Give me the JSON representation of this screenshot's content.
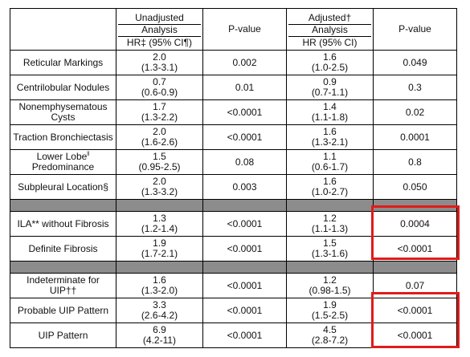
{
  "header": {
    "col1": "",
    "col2_line1": "Unadjusted",
    "col2_line2": "Analysis",
    "col2_line3": "HR‡ (95% CI¶)",
    "col3": "P-value",
    "col4_line1": "Adjusted†",
    "col4_line2": "Analysis",
    "col4_line3": "HR (95% CI)",
    "col5": "P-value"
  },
  "group1": [
    {
      "label": "Reticular Markings",
      "hr_unadj": "2.0",
      "ci_unadj": "(1.3-3.1)",
      "p_unadj": "0.002",
      "hr_adj": "1.6",
      "ci_adj": "(1.0-2.5)",
      "p_adj": "0.049"
    },
    {
      "label": "Centrilobular Nodules",
      "hr_unadj": "0.7",
      "ci_unadj": "(0.6-0.9)",
      "p_unadj": "0.01",
      "hr_adj": "0.9",
      "ci_adj": "(0.7-1.1)",
      "p_adj": "0.3"
    },
    {
      "label": "Nonemphysematous Cysts",
      "hr_unadj": "1.7",
      "ci_unadj": "(1.3-2.2)",
      "p_unadj": "<0.0001",
      "hr_adj": "1.4",
      "ci_adj": "(1.1-1.8)",
      "p_adj": "0.02"
    },
    {
      "label": "Traction Bronchiectasis",
      "hr_unadj": "2.0",
      "ci_unadj": "(1.6-2.6)",
      "p_unadj": "<0.0001",
      "hr_adj": "1.6",
      "ci_adj": "(1.3-2.1)",
      "p_adj": "0.0001"
    },
    {
      "label": "Lower Lobe",
      "label_sup": "ll",
      "label2": "Predominance",
      "hr_unadj": "1.5",
      "ci_unadj": "(0.95-2.5)",
      "p_unadj": "0.08",
      "hr_adj": "1.1",
      "ci_adj": "(0.6-1.7)",
      "p_adj": "0.8"
    },
    {
      "label": "Subpleural Location§",
      "hr_unadj": "2.0",
      "ci_unadj": "(1.3-3.2)",
      "p_unadj": "0.003",
      "hr_adj": "1.6",
      "ci_adj": "(1.0-2.7)",
      "p_adj": "0.050"
    }
  ],
  "group2": [
    {
      "label": "ILA** without Fibrosis",
      "hr_unadj": "1.3",
      "ci_unadj": "(1.2-1.4)",
      "p_unadj": "<0.0001",
      "hr_adj": "1.2",
      "ci_adj": "(1.1-1.3)",
      "p_adj": "0.0004"
    },
    {
      "label": "Definite Fibrosis",
      "hr_unadj": "1.9",
      "ci_unadj": "(1.7-2.1)",
      "p_unadj": "<0.0001",
      "hr_adj": "1.5",
      "ci_adj": "(1.3-1.6)",
      "p_adj": "<0.0001"
    }
  ],
  "group3": [
    {
      "label": "Indeterminate for UIP††",
      "hr_unadj": "1.6",
      "ci_unadj": "(1.3-2.0)",
      "p_unadj": "<0.0001",
      "hr_adj": "1.2",
      "ci_adj": "(0.98-1.5)",
      "p_adj": "0.07"
    },
    {
      "label": "Probable UIP Pattern",
      "hr_unadj": "3.3",
      "ci_unadj": "(2.6-4.2)",
      "p_unadj": "<0.0001",
      "hr_adj": "1.9",
      "ci_adj": "(1.5-2.5)",
      "p_adj": "<0.0001"
    },
    {
      "label": "UIP Pattern",
      "hr_unadj": "6.9",
      "ci_unadj": "(4.2-11)",
      "p_unadj": "<0.0001",
      "hr_adj": "4.5",
      "ci_adj": "(2.8-7.2)",
      "p_adj": "<0.0001"
    }
  ],
  "highlight_color": "#e01b1b",
  "separator_color": "#8c8c8c"
}
